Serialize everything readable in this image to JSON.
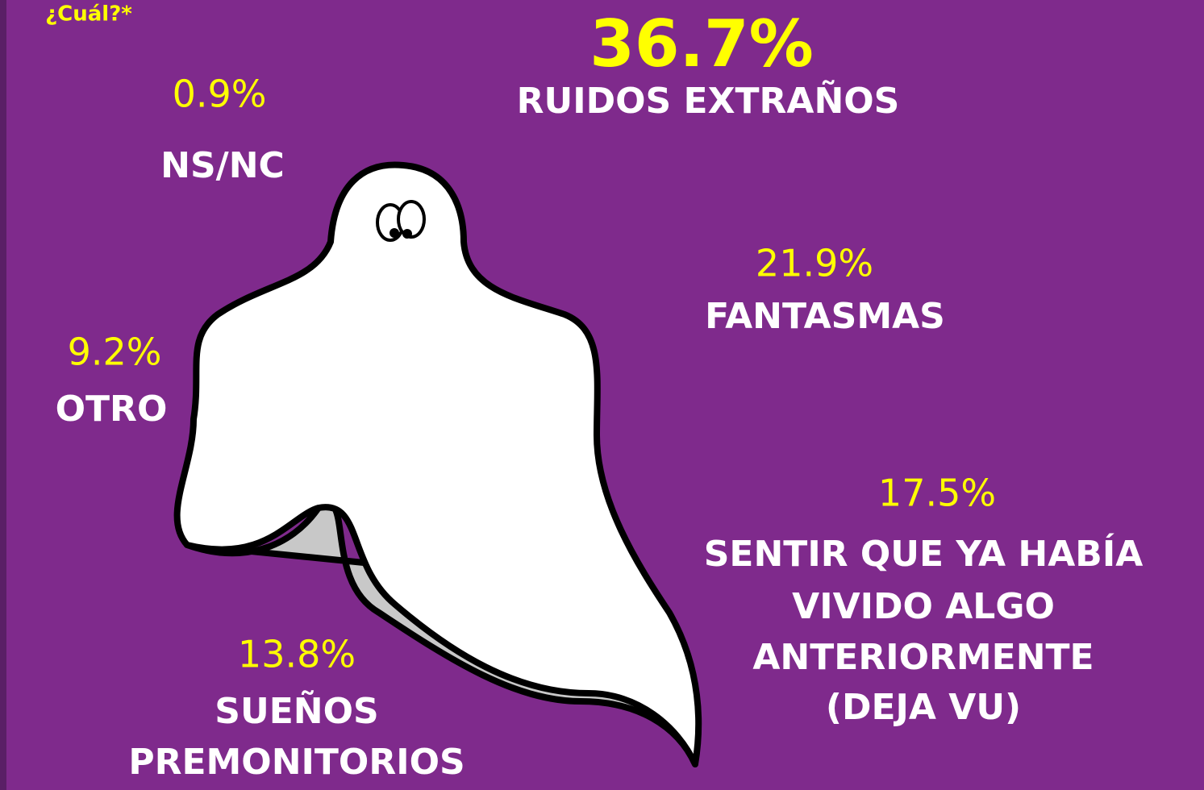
{
  "header": {
    "question": "¿Cuál?*"
  },
  "items": [
    {
      "value": "36.7%",
      "label": [
        "RUIDOS EXTRAÑOS"
      ]
    },
    {
      "value": "0.9%",
      "label": [
        "NS/NC"
      ]
    },
    {
      "value": "21.9%",
      "label": [
        "FANTASMAS"
      ]
    },
    {
      "value": "9.2%",
      "label": [
        "OTRO"
      ]
    },
    {
      "value": "17.5%",
      "label": [
        "SENTIR QUE YA HABÍA",
        "VIVIDO ALGO",
        "ANTERIORMENTE",
        "(DEJA VU)"
      ]
    },
    {
      "value": "13.8%",
      "label": [
        "SUEÑOS",
        "PREMONITORIOS"
      ]
    }
  ]
}
